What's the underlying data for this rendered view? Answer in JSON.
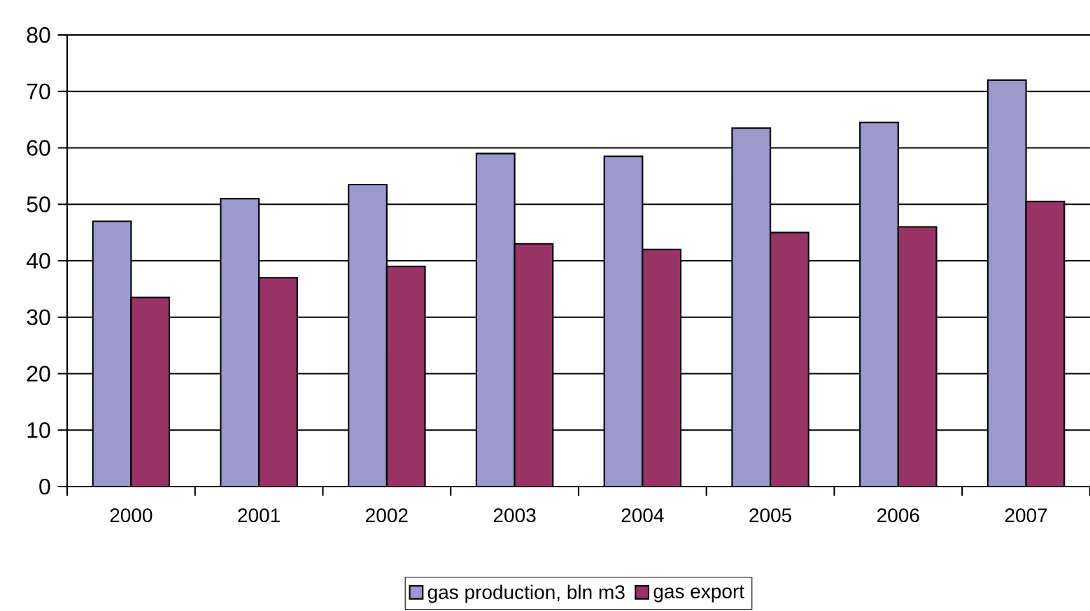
{
  "chart_data": {
    "type": "bar",
    "categories": [
      "2000",
      "2001",
      "2002",
      "2003",
      "2004",
      "2005",
      "2006",
      "2007"
    ],
    "series": [
      {
        "name": "gas production, bln m3",
        "color": "#9999cc",
        "values": [
          47,
          51,
          53.5,
          59,
          58.5,
          63.5,
          64.5,
          72
        ]
      },
      {
        "name": "gas export",
        "color": "#993366",
        "values": [
          33.5,
          37,
          39,
          43,
          42,
          45,
          46,
          50.5
        ]
      }
    ],
    "ylim": [
      0,
      80
    ],
    "yticks": [
      0,
      10,
      20,
      30,
      40,
      50,
      60,
      70,
      80
    ],
    "grid": "y",
    "legend": "bottom"
  }
}
